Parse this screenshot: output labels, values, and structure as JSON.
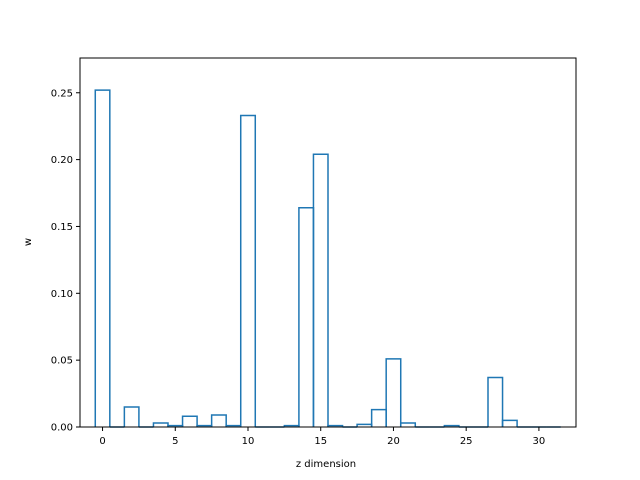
{
  "chart_data": {
    "type": "bar",
    "style": "step-histogram",
    "title": "",
    "xlabel": "z dimension",
    "ylabel": "w",
    "xlim": [
      -1.55,
      32.55
    ],
    "ylim": [
      0,
      0.276
    ],
    "xticks": [
      0,
      5,
      10,
      15,
      20,
      25,
      30
    ],
    "yticks": [
      0.0,
      0.05,
      0.1,
      0.15,
      0.2,
      0.25
    ],
    "ytick_labels": [
      "0.00",
      "0.05",
      "0.10",
      "0.15",
      "0.20",
      "0.25"
    ],
    "grid": false,
    "color": "#1f77b4",
    "x": [
      0,
      1,
      2,
      3,
      4,
      5,
      6,
      7,
      8,
      9,
      10,
      11,
      12,
      13,
      14,
      15,
      16,
      17,
      18,
      19,
      20,
      21,
      22,
      23,
      24,
      25,
      26,
      27,
      28,
      29,
      30,
      31
    ],
    "values": [
      0.252,
      0.0,
      0.015,
      0.0,
      0.003,
      0.001,
      0.008,
      0.001,
      0.009,
      0.001,
      0.233,
      0.0,
      0.0,
      0.001,
      0.164,
      0.204,
      0.001,
      0.0,
      0.002,
      0.013,
      0.051,
      0.003,
      0.0,
      0.0,
      0.001,
      0.0,
      0.0,
      0.037,
      0.005,
      0.0,
      0.0,
      0.0
    ]
  }
}
